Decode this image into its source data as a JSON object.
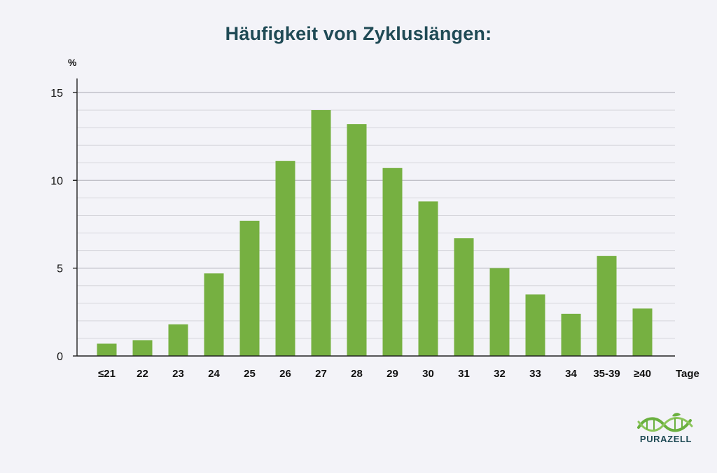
{
  "chart_data": {
    "type": "bar",
    "title": "Häufigkeit von Zykluslängen:",
    "ylabel": "%",
    "xlabel": "Tage",
    "ylim": [
      0,
      15
    ],
    "yticks": [
      0,
      5,
      10,
      15
    ],
    "grid": true,
    "bar_color": "#76b041",
    "categories": [
      "≤21",
      "22",
      "23",
      "24",
      "25",
      "26",
      "27",
      "28",
      "29",
      "30",
      "31",
      "32",
      "33",
      "34",
      "35-39",
      "≥40"
    ],
    "values": [
      0.7,
      0.9,
      1.8,
      4.7,
      7.7,
      11.1,
      14.0,
      13.2,
      10.7,
      8.8,
      6.7,
      5.0,
      3.5,
      2.4,
      5.7,
      2.7
    ]
  },
  "logo": {
    "text": "PURAZELL",
    "icon": "leaf-dna-icon",
    "color": "#6ab03f",
    "text_color": "#1f4a55"
  }
}
